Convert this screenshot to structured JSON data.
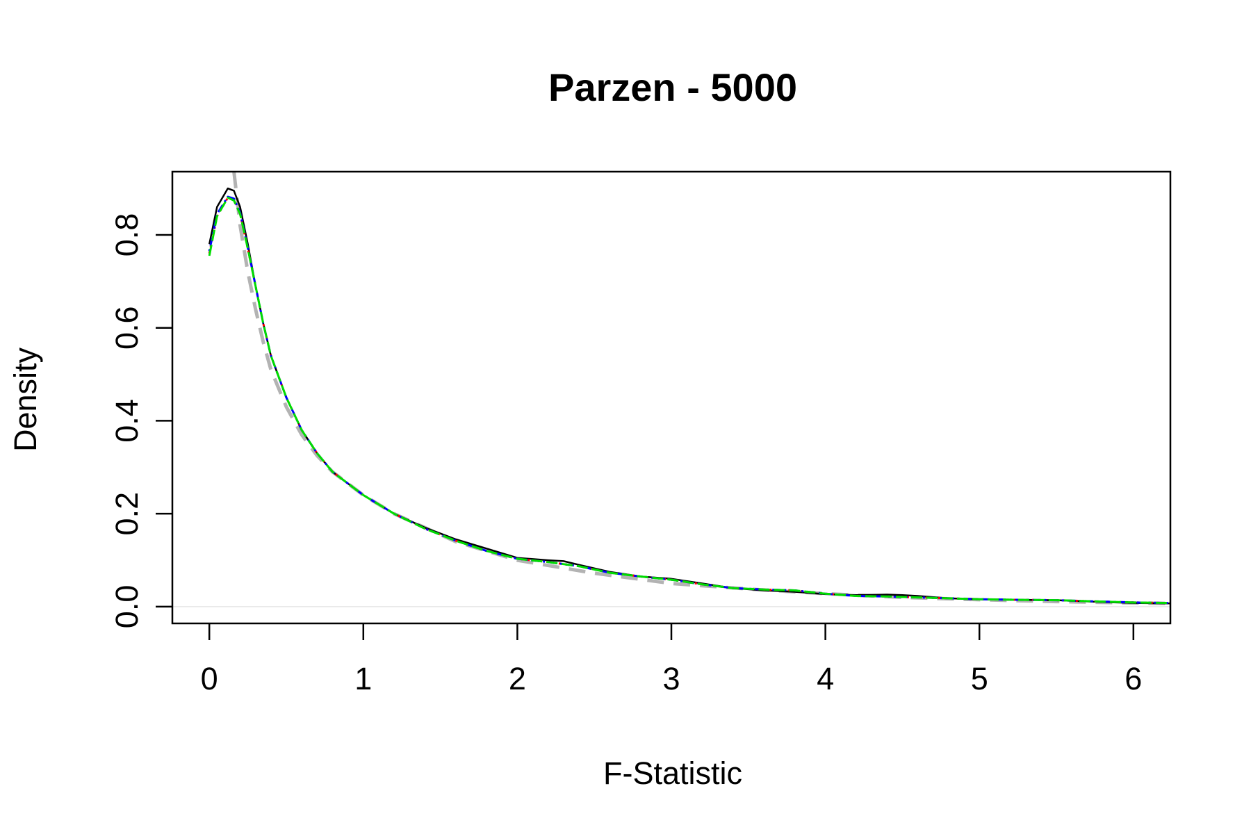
{
  "chart_data": {
    "type": "line",
    "title": "Parzen - 5000",
    "xlabel": "F-Statistic",
    "ylabel": "Density",
    "xlim": [
      -0.24,
      6.24
    ],
    "ylim": [
      -0.036,
      0.936
    ],
    "xticks": [
      0,
      1,
      2,
      3,
      4,
      5,
      6
    ],
    "xtick_labels": [
      "0",
      "1",
      "2",
      "3",
      "4",
      "5",
      "6"
    ],
    "yticks": [
      0.0,
      0.2,
      0.4,
      0.6,
      0.8
    ],
    "ytick_labels": [
      "0.0",
      "0.2",
      "0.4",
      "0.6",
      "0.8"
    ],
    "grid": false,
    "reference_line_y": 0,
    "series": [
      {
        "color": "#000000",
        "style": "solid",
        "x": [
          0,
          0.05,
          0.12,
          0.16,
          0.2,
          0.25,
          0.3,
          0.35,
          0.4,
          0.5,
          0.6,
          0.7,
          0.8,
          1.0,
          1.2,
          1.4,
          1.6,
          1.8,
          2.0,
          2.2,
          2.3,
          2.4,
          2.6,
          2.8,
          3.0,
          3.2,
          3.4,
          3.6,
          3.8,
          4.0,
          4.2,
          4.4,
          4.5,
          4.6,
          4.8,
          5.0,
          5.2,
          5.5,
          5.8,
          6.0,
          6.24
        ],
        "y": [
          0.78,
          0.86,
          0.9,
          0.895,
          0.86,
          0.78,
          0.69,
          0.61,
          0.54,
          0.45,
          0.38,
          0.33,
          0.29,
          0.24,
          0.2,
          0.17,
          0.145,
          0.125,
          0.105,
          0.1,
          0.098,
          0.09,
          0.075,
          0.065,
          0.06,
          0.05,
          0.04,
          0.035,
          0.032,
          0.027,
          0.025,
          0.026,
          0.025,
          0.023,
          0.018,
          0.016,
          0.015,
          0.014,
          0.01,
          0.008,
          0.007
        ]
      },
      {
        "color": "#ff0000",
        "style": "dotted",
        "x": [
          0,
          0.05,
          0.12,
          0.16,
          0.2,
          0.25,
          0.3,
          0.35,
          0.4,
          0.5,
          0.6,
          0.7,
          0.8,
          1.0,
          1.2,
          1.4,
          1.6,
          1.8,
          2.0,
          2.2,
          2.4,
          2.6,
          2.8,
          3.0,
          3.2,
          3.4,
          3.6,
          3.8,
          4.0,
          4.2,
          4.4,
          4.6,
          4.8,
          5.0,
          5.2,
          5.5,
          5.8,
          6.0,
          6.24
        ],
        "y": [
          0.76,
          0.84,
          0.88,
          0.875,
          0.845,
          0.77,
          0.69,
          0.61,
          0.54,
          0.45,
          0.38,
          0.33,
          0.29,
          0.24,
          0.2,
          0.168,
          0.142,
          0.12,
          0.103,
          0.096,
          0.087,
          0.073,
          0.065,
          0.058,
          0.048,
          0.04,
          0.037,
          0.035,
          0.028,
          0.023,
          0.022,
          0.02,
          0.018,
          0.016,
          0.015,
          0.014,
          0.011,
          0.009,
          0.008
        ]
      },
      {
        "color": "#0000ff",
        "style": "dashdot",
        "x": [
          0,
          0.05,
          0.12,
          0.16,
          0.2,
          0.25,
          0.3,
          0.35,
          0.4,
          0.5,
          0.6,
          0.7,
          0.8,
          1.0,
          1.2,
          1.4,
          1.6,
          1.8,
          2.0,
          2.2,
          2.4,
          2.6,
          2.8,
          3.0,
          3.2,
          3.4,
          3.6,
          3.8,
          4.0,
          4.2,
          4.4,
          4.6,
          4.8,
          5.0,
          5.2,
          5.5,
          5.8,
          6.0,
          6.24
        ],
        "y": [
          0.765,
          0.845,
          0.882,
          0.878,
          0.848,
          0.772,
          0.69,
          0.61,
          0.54,
          0.45,
          0.38,
          0.33,
          0.29,
          0.24,
          0.2,
          0.168,
          0.142,
          0.12,
          0.103,
          0.096,
          0.087,
          0.073,
          0.065,
          0.058,
          0.048,
          0.04,
          0.037,
          0.035,
          0.028,
          0.023,
          0.022,
          0.02,
          0.018,
          0.016,
          0.015,
          0.014,
          0.011,
          0.009,
          0.008
        ]
      },
      {
        "color": "#00dd00",
        "style": "longdash",
        "x": [
          0,
          0.05,
          0.12,
          0.16,
          0.2,
          0.25,
          0.3,
          0.35,
          0.4,
          0.5,
          0.6,
          0.7,
          0.8,
          1.0,
          1.2,
          1.4,
          1.6,
          1.8,
          2.0,
          2.2,
          2.4,
          2.6,
          2.8,
          3.0,
          3.2,
          3.4,
          3.6,
          3.8,
          4.0,
          4.2,
          4.4,
          4.6,
          4.8,
          5.0,
          5.2,
          5.5,
          5.8,
          6.0,
          6.24
        ],
        "y": [
          0.755,
          0.84,
          0.88,
          0.874,
          0.845,
          0.77,
          0.69,
          0.61,
          0.54,
          0.45,
          0.38,
          0.33,
          0.29,
          0.24,
          0.2,
          0.168,
          0.142,
          0.12,
          0.103,
          0.096,
          0.087,
          0.073,
          0.065,
          0.058,
          0.048,
          0.04,
          0.037,
          0.035,
          0.028,
          0.023,
          0.022,
          0.02,
          0.018,
          0.016,
          0.015,
          0.014,
          0.011,
          0.009,
          0.008
        ]
      },
      {
        "color": "#b3b3b3",
        "style": "dashed",
        "x": [
          0.16,
          0.2,
          0.25,
          0.3,
          0.35,
          0.4,
          0.5,
          0.6,
          0.7,
          0.8,
          1.0,
          1.2,
          1.4,
          1.6,
          1.8,
          2.0,
          2.5,
          3.0,
          3.5,
          4.0,
          4.5,
          5.0,
          5.5,
          6.0,
          6.24
        ],
        "y": [
          0.936,
          0.82,
          0.72,
          0.64,
          0.57,
          0.51,
          0.43,
          0.37,
          0.325,
          0.29,
          0.24,
          0.2,
          0.17,
          0.14,
          0.12,
          0.1,
          0.072,
          0.05,
          0.038,
          0.028,
          0.02,
          0.015,
          0.011,
          0.008,
          0.007
        ]
      }
    ]
  }
}
